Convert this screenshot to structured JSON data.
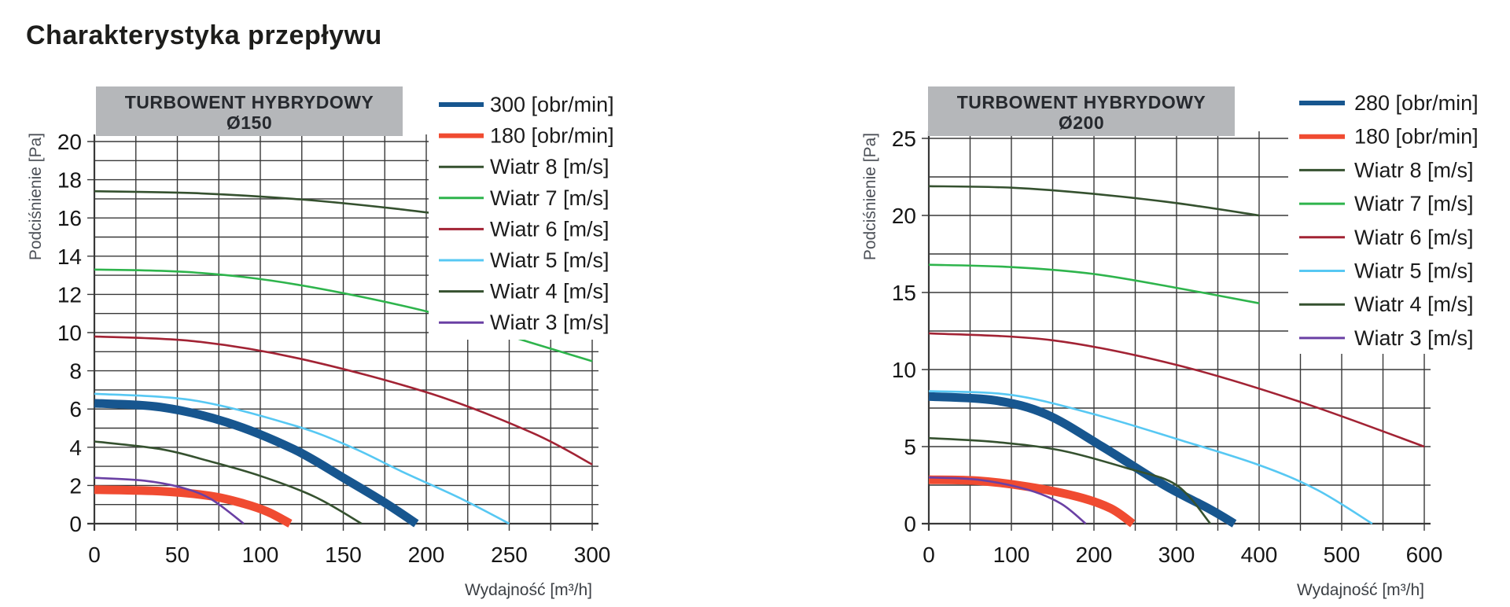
{
  "page_title": "Charakterystyka przepływu",
  "chart_data": [
    {
      "type": "line",
      "title": "TURBOWENT HYBRYDOWY",
      "subtitle": "Ø150",
      "xlabel": "Wydajność [m³/h]",
      "ylabel": "Podciśnienie [Pa]",
      "xlim": [
        0,
        300
      ],
      "ylim": [
        0,
        20
      ],
      "x_tick_step": 50,
      "x_grid_step": 25,
      "y_tick_step": 2,
      "y_grid_step": 1,
      "grid": true,
      "legend_position": "top-right-overlay",
      "series": [
        {
          "name": "300 [obr/min]",
          "color": "#17568f",
          "thick": true,
          "points": [
            [
              0,
              6.3
            ],
            [
              40,
              6.1
            ],
            [
              80,
              5.3
            ],
            [
              120,
              3.9
            ],
            [
              150,
              2.4
            ],
            [
              175,
              1.1
            ],
            [
              194,
              0
            ]
          ]
        },
        {
          "name": "180 [obr/min]",
          "color": "#f04b31",
          "thick": true,
          "points": [
            [
              0,
              1.78
            ],
            [
              40,
              1.7
            ],
            [
              70,
              1.45
            ],
            [
              90,
              1.05
            ],
            [
              105,
              0.6
            ],
            [
              118,
              0
            ]
          ]
        },
        {
          "name": "Wiatr  8 [m/s]",
          "color": "#35512f",
          "thick": false,
          "points": [
            [
              0,
              17.4
            ],
            [
              60,
              17.3
            ],
            [
              120,
              17.0
            ],
            [
              180,
              16.5
            ],
            [
              246,
              15.8
            ]
          ]
        },
        {
          "name": "Wiatr  7 [m/s]",
          "color": "#2eb44c",
          "thick": false,
          "points": [
            [
              0,
              13.3
            ],
            [
              60,
              13.15
            ],
            [
              123,
              12.5
            ],
            [
              203,
              11.05
            ],
            [
              262,
              9.5
            ],
            [
              300,
              8.5
            ]
          ]
        },
        {
          "name": "Wiatr  6 [m/s]",
          "color": "#a22334",
          "thick": false,
          "points": [
            [
              0,
              9.8
            ],
            [
              60,
              9.55
            ],
            [
              123,
              8.65
            ],
            [
              203,
              6.8
            ],
            [
              264,
              4.75
            ],
            [
              300,
              3.1
            ]
          ]
        },
        {
          "name": "Wiatr  5 [m/s]",
          "color": "#57c8f3",
          "thick": false,
          "points": [
            [
              0,
              6.8
            ],
            [
              60,
              6.45
            ],
            [
              120,
              5.15
            ],
            [
              155,
              4.0
            ],
            [
              186,
              2.7
            ],
            [
              220,
              1.35
            ],
            [
              250,
              0
            ]
          ]
        },
        {
          "name": "Wiatr  4 [m/s]",
          "color": "#35512f",
          "thick": false,
          "points": [
            [
              0,
              4.3
            ],
            [
              40,
              3.9
            ],
            [
              68,
              3.3
            ],
            [
              100,
              2.5
            ],
            [
              133,
              1.4
            ],
            [
              161,
              0
            ]
          ]
        },
        {
          "name": "Wiatr  3 [m/s]",
          "color": "#6a40a4",
          "thick": false,
          "points": [
            [
              0,
              2.4
            ],
            [
              30,
              2.25
            ],
            [
              52,
              1.9
            ],
            [
              70,
              1.3
            ],
            [
              90,
              0
            ]
          ]
        }
      ]
    },
    {
      "type": "line",
      "title": "TURBOWENT HYBRYDOWY",
      "subtitle": "Ø200",
      "xlabel": "Wydajność [m³/h]",
      "ylabel": "Podciśnienie [Pa]",
      "xlim": [
        0,
        600
      ],
      "ylim": [
        0,
        25
      ],
      "x_tick_step": 100,
      "x_grid_step": 50,
      "y_tick_step": 5,
      "y_grid_step": 2.5,
      "grid": true,
      "legend_position": "top-right-overlay",
      "series": [
        {
          "name": "280 [obr/min]",
          "color": "#17568f",
          "thick": true,
          "points": [
            [
              0,
              8.25
            ],
            [
              80,
              8.0
            ],
            [
              142,
              7.1
            ],
            [
              210,
              5.0
            ],
            [
              285,
              2.5
            ],
            [
              340,
              0.95
            ],
            [
              370,
              0
            ]
          ]
        },
        {
          "name": "180 [obr/min]",
          "color": "#f04b31",
          "thick": true,
          "points": [
            [
              0,
              2.85
            ],
            [
              60,
              2.78
            ],
            [
              120,
              2.4
            ],
            [
              180,
              1.75
            ],
            [
              220,
              1.0
            ],
            [
              247,
              0
            ]
          ]
        },
        {
          "name": "Wiatr  8 [m/s]",
          "color": "#35512f",
          "thick": false,
          "points": [
            [
              0,
              21.9
            ],
            [
              100,
              21.8
            ],
            [
              200,
              21.4
            ],
            [
              300,
              20.8
            ],
            [
              400,
              20.0
            ]
          ]
        },
        {
          "name": "Wiatr  7 [m/s]",
          "color": "#2eb44c",
          "thick": false,
          "points": [
            [
              0,
              16.8
            ],
            [
              100,
              16.65
            ],
            [
              200,
              16.2
            ],
            [
              300,
              15.3
            ],
            [
              400,
              14.3
            ]
          ]
        },
        {
          "name": "Wiatr  6 [m/s]",
          "color": "#a22334",
          "thick": false,
          "points": [
            [
              0,
              12.35
            ],
            [
              150,
              11.9
            ],
            [
              300,
              10.3
            ],
            [
              450,
              7.9
            ],
            [
              600,
              5.0
            ]
          ]
        },
        {
          "name": "Wiatr  5 [m/s]",
          "color": "#57c8f3",
          "thick": false,
          "points": [
            [
              0,
              8.6
            ],
            [
              100,
              8.35
            ],
            [
              200,
              7.1
            ],
            [
              300,
              5.5
            ],
            [
              400,
              3.8
            ],
            [
              470,
              2.2
            ],
            [
              537,
              0
            ]
          ]
        },
        {
          "name": "Wiatr  4 [m/s]",
          "color": "#35512f",
          "thick": false,
          "points": [
            [
              0,
              5.55
            ],
            [
              80,
              5.3
            ],
            [
              160,
              4.75
            ],
            [
              240,
              3.6
            ],
            [
              300,
              2.5
            ],
            [
              341,
              0
            ]
          ]
        },
        {
          "name": "Wiatr  3 [m/s]",
          "color": "#6a40a4",
          "thick": false,
          "points": [
            [
              0,
              3.0
            ],
            [
              60,
              2.85
            ],
            [
              120,
              2.2
            ],
            [
              160,
              1.3
            ],
            [
              190,
              0
            ]
          ]
        }
      ]
    }
  ],
  "style": {
    "grid_color": "#383838",
    "axis_color": "#2b2b2b",
    "tick_label_color": "#161616",
    "title_box_fill": "#b5b7ba",
    "title_box_text_color": "#26292e",
    "y_axis_title_color": "#4d5158",
    "x_axis_title_color": "#3c4045",
    "legend_text_color": "#1b1b1b",
    "legend_bg": "#ffffff"
  }
}
